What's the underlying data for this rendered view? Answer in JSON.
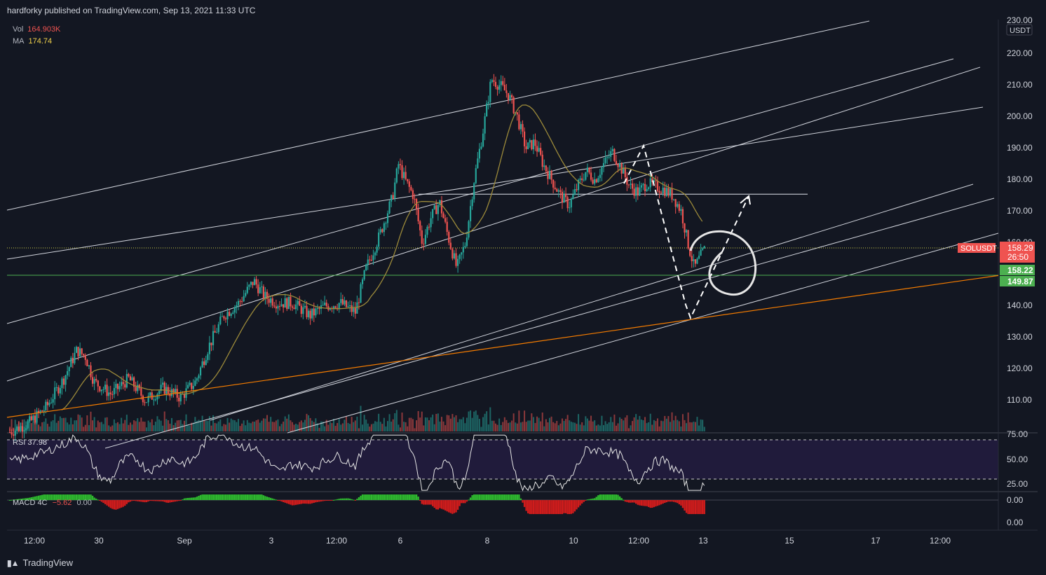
{
  "header": {
    "published": "hardforky published on TradingView.com, Sep 13, 2021 11:33 UTC"
  },
  "legend": {
    "vol_key": "Vol",
    "vol_value": "164.903K",
    "ma_key": "MA",
    "ma_value": "174.74"
  },
  "rsi_panel": {
    "label": "RSI",
    "value": "37.98",
    "ticks": [
      "75.00",
      "50.00",
      "25.00"
    ]
  },
  "macd_panel": {
    "label": "MACD 4C",
    "value1": "−5.62",
    "value2": "0.00",
    "ticks": [
      "0.00",
      "0.00"
    ]
  },
  "price_axis": {
    "currency": "USDT",
    "ticks": [
      "230.00",
      "220.00",
      "210.00",
      "200.00",
      "190.00",
      "180.00",
      "170.00",
      "160.00",
      "140.00",
      "130.00",
      "120.00",
      "110.00"
    ]
  },
  "badges": {
    "symbol": "SOLUSDT",
    "last_price": "158.29",
    "countdown": "26:50",
    "level_1": "158.22",
    "level_2": "149.87"
  },
  "time_axis": {
    "ticks": [
      "12:00",
      "30",
      "Sep",
      "3",
      "12:00",
      "6",
      "8",
      "10",
      "12:00",
      "13",
      "15",
      "17",
      "12:00"
    ]
  },
  "brand": {
    "logo_icon": "tradingview-logo-icon",
    "name": "TradingView"
  },
  "colors": {
    "background": "#131722",
    "up": "#26a69a",
    "down": "#ef5350",
    "channel": "#d1d4dc",
    "ma": "#9c8a3a",
    "long_ma": "#f57c00",
    "level_green": "#4caf50",
    "level_dotted": "#c8c84a",
    "rsi_fill": "#2a1e4d"
  },
  "chart_data": {
    "type": "candlestick",
    "symbol": "SOLUSDT",
    "price_range": [
      100,
      232
    ],
    "x_range_days": [
      "2021-08-29 12:00",
      "2021-09-18 00:00"
    ],
    "close_path": [
      [
        0.0,
        100
      ],
      [
        0.45,
        103
      ],
      [
        0.85,
        108
      ],
      [
        1.25,
        117
      ],
      [
        1.55,
        126
      ],
      [
        1.75,
        124
      ],
      [
        1.95,
        116
      ],
      [
        2.35,
        112
      ],
      [
        2.75,
        117
      ],
      [
        3.15,
        110
      ],
      [
        3.55,
        114
      ],
      [
        3.95,
        111
      ],
      [
        4.3,
        116
      ],
      [
        4.6,
        127
      ],
      [
        4.95,
        137
      ],
      [
        5.3,
        141
      ],
      [
        5.65,
        148
      ],
      [
        5.9,
        143
      ],
      [
        6.2,
        141
      ],
      [
        6.55,
        141
      ],
      [
        6.95,
        137
      ],
      [
        7.3,
        140
      ],
      [
        7.65,
        141
      ],
      [
        8.0,
        138
      ],
      [
        8.25,
        152
      ],
      [
        8.55,
        162
      ],
      [
        8.85,
        174
      ],
      [
        9.0,
        185
      ],
      [
        9.15,
        180
      ],
      [
        9.35,
        175
      ],
      [
        9.55,
        160
      ],
      [
        9.75,
        168
      ],
      [
        9.95,
        173
      ],
      [
        10.15,
        162
      ],
      [
        10.35,
        152
      ],
      [
        10.55,
        160
      ],
      [
        10.75,
        180
      ],
      [
        10.95,
        195
      ],
      [
        11.15,
        212
      ],
      [
        11.35,
        210
      ],
      [
        11.55,
        207
      ],
      [
        11.75,
        200
      ],
      [
        11.95,
        190
      ],
      [
        12.15,
        192
      ],
      [
        12.35,
        185
      ],
      [
        12.55,
        180
      ],
      [
        12.75,
        175
      ],
      [
        12.95,
        172
      ],
      [
        13.15,
        178
      ],
      [
        13.35,
        183
      ],
      [
        13.55,
        180
      ],
      [
        13.75,
        185
      ],
      [
        13.95,
        189
      ],
      [
        14.15,
        184
      ],
      [
        14.35,
        178
      ],
      [
        14.55,
        176
      ],
      [
        14.75,
        179
      ],
      [
        14.95,
        178
      ],
      [
        15.15,
        177
      ],
      [
        15.35,
        175
      ],
      [
        15.55,
        170
      ],
      [
        15.7,
        160
      ],
      [
        15.85,
        152
      ],
      [
        16.0,
        156
      ],
      [
        16.1,
        158.29
      ]
    ],
    "volume_ma": 174.74,
    "horizontal_levels": [
      {
        "price": 175.5,
        "style": "solid-white"
      },
      {
        "price": 158.22,
        "style": "dotted"
      },
      {
        "price": 149.87,
        "style": "solid-green"
      }
    ],
    "rsi": {
      "value": 37.98,
      "bands": [
        70,
        30
      ]
    },
    "grid": false,
    "legend": "top-left"
  }
}
